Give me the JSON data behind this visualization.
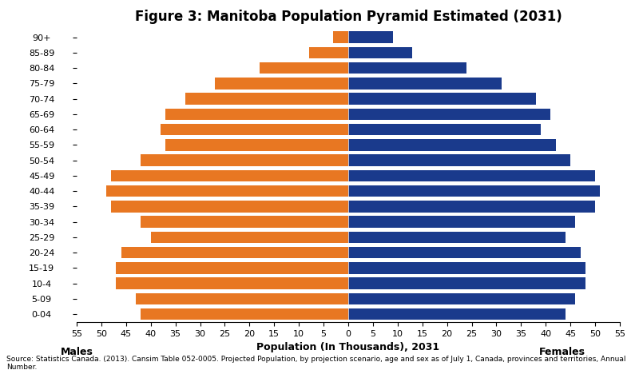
{
  "title": "Figure 3: Manitoba Population Pyramid Estimated (2031)",
  "xlabel": "Population (In Thousands), 2031",
  "ylabel_left": "Males",
  "ylabel_right": "Females",
  "source": "Source: Statistics Canada. (2013). Cansim Table 052-0005. Projected Population, by projection scenario, age and sex as of July 1, Canada, provinces and territories, Annual Number.",
  "age_groups": [
    "0-04",
    "5-09",
    "10-4",
    "15-19",
    "20-24",
    "25-29",
    "30-34",
    "35-39",
    "40-44",
    "45-49",
    "50-54",
    "55-59",
    "60-64",
    "65-69",
    "70-74",
    "75-79",
    "80-84",
    "85-89",
    "90+"
  ],
  "males": [
    42,
    43,
    47,
    47,
    46,
    40,
    42,
    48,
    49,
    48,
    42,
    37,
    38,
    37,
    33,
    27,
    18,
    8,
    3
  ],
  "females": [
    44,
    46,
    48,
    48,
    47,
    44,
    46,
    50,
    51,
    50,
    45,
    42,
    39,
    41,
    38,
    31,
    24,
    13,
    9
  ],
  "male_color": "#E87722",
  "female_color": "#1A3A8C",
  "bar_height": 0.75,
  "xlim": 55,
  "title_fontsize": 12,
  "tick_fontsize": 8,
  "label_fontsize": 9,
  "source_fontsize": 6.5
}
